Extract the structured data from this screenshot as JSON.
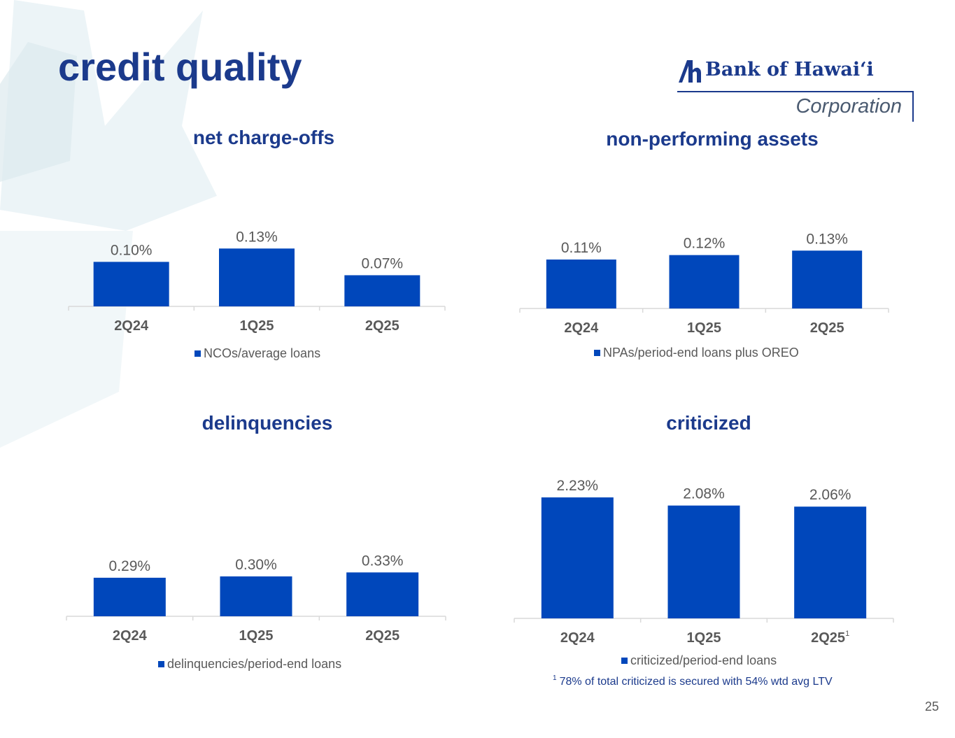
{
  "page": {
    "title": "credit quality",
    "page_number": "25"
  },
  "logo": {
    "name": "Bank of Hawaiʻi",
    "subtitle": "Corporation"
  },
  "footnote": {
    "marker": "1",
    "text": "78% of total criticized is secured with 54% wtd avg LTV"
  },
  "colors": {
    "bar": "#0047bb",
    "title": "#1b3a8c",
    "label": "#595959",
    "axis": "#d9d9d9"
  },
  "chart_data": [
    {
      "type": "bar",
      "title": "net charge-offs",
      "categories": [
        "2Q24",
        "1Q25",
        "2Q25"
      ],
      "series": [
        {
          "name": "NCOs/average loans",
          "values": [
            0.1,
            0.13,
            0.07
          ]
        }
      ],
      "data_labels": [
        "0.10%",
        "0.13%",
        "0.07%"
      ],
      "ylim": [
        0,
        0.22
      ],
      "legend": "bottom",
      "grid": false
    },
    {
      "type": "bar",
      "title": "non-performing assets",
      "categories": [
        "2Q24",
        "1Q25",
        "2Q25"
      ],
      "series": [
        {
          "name": "NPAs/period-end loans plus OREO",
          "values": [
            0.11,
            0.12,
            0.13
          ]
        }
      ],
      "data_labels": [
        "0.11%",
        "0.12%",
        "0.13%"
      ],
      "ylim": [
        0,
        0.22
      ],
      "legend": "bottom",
      "grid": false
    },
    {
      "type": "bar",
      "title": "delinquencies",
      "categories": [
        "2Q24",
        "1Q25",
        "2Q25"
      ],
      "series": [
        {
          "name": "delinquencies/period-end loans",
          "values": [
            0.29,
            0.3,
            0.33
          ]
        }
      ],
      "data_labels": [
        "0.29%",
        "0.30%",
        "0.33%"
      ],
      "ylim": [
        0,
        1.0
      ],
      "legend": "bottom",
      "grid": false
    },
    {
      "type": "bar",
      "title": "criticized",
      "categories": [
        "2Q24",
        "1Q25",
        "2Q25"
      ],
      "category_footnote": [
        "",
        "",
        "1"
      ],
      "series": [
        {
          "name": "criticized/period-end loans",
          "values": [
            2.23,
            2.08,
            2.06
          ]
        }
      ],
      "data_labels": [
        "2.23%",
        "2.08%",
        "2.06%"
      ],
      "ylim": [
        0,
        2.45
      ],
      "legend": "bottom",
      "grid": false
    }
  ]
}
